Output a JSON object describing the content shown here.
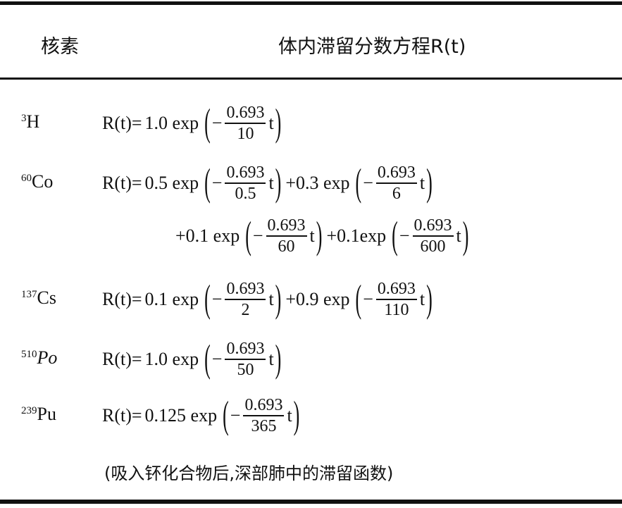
{
  "header": {
    "col1": "核素",
    "col2": "体内滞留分数方程R(t)"
  },
  "rows": [
    {
      "mass": "3",
      "symbol": "H",
      "lines": [
        {
          "lead": "R(t)=",
          "terms": [
            {
              "coef": "1.0 exp",
              "num": "0.693",
              "den": "10"
            }
          ]
        }
      ]
    },
    {
      "mass": "60",
      "symbol": "Co",
      "lines": [
        {
          "lead": "R(t)=",
          "terms": [
            {
              "coef": "0.5 exp",
              "num": "0.693",
              "den": "0.5"
            },
            {
              "coef": "+0.3 exp",
              "num": "0.693",
              "den": "6"
            }
          ]
        },
        {
          "lead": "",
          "terms": [
            {
              "coef": "+0.1 exp",
              "num": "0.693",
              "den": "60"
            },
            {
              "coef": "+0.1exp",
              "num": "0.693",
              "den": "600"
            }
          ]
        }
      ]
    },
    {
      "mass": "137",
      "symbol": "Cs",
      "lines": [
        {
          "lead": "R(t)=",
          "terms": [
            {
              "coef": "0.1 exp",
              "num": "0.693",
              "den": "2"
            },
            {
              "coef": "+0.9 exp",
              "num": "0.693",
              "den": "110"
            }
          ]
        }
      ]
    },
    {
      "mass": "510",
      "symbol": "Po",
      "lines": [
        {
          "lead": "R(t)=",
          "terms": [
            {
              "coef": "1.0 exp",
              "num": "0.693",
              "den": "50"
            }
          ]
        }
      ]
    },
    {
      "mass": "239",
      "symbol": "Pu",
      "lines": [
        {
          "lead": "R(t)=",
          "terms": [
            {
              "coef": "0.125 exp",
              "num": "0.693",
              "den": "365"
            }
          ]
        }
      ]
    }
  ],
  "symbols": {
    "minus": "−",
    "var": "t",
    "open": "(",
    "close": ")"
  },
  "note": "(吸入钚化合物后,深部肺中的滞留函数)"
}
